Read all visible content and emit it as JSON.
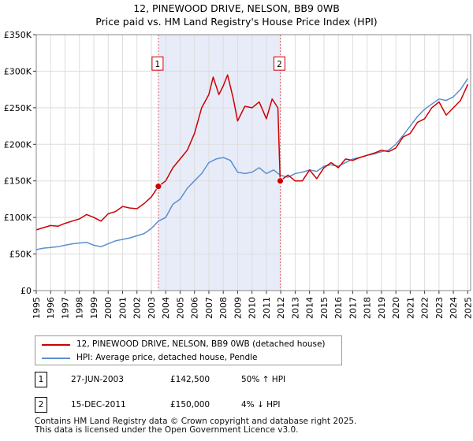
{
  "header": {
    "title_line1": "12, PINEWOOD DRIVE, NELSON, BB9 0WB",
    "title_line2": "Price paid vs. HM Land Registry's House Price Index (HPI)"
  },
  "chart_data": {
    "type": "line",
    "title": "12, PINEWOOD DRIVE, NELSON, BB9 0WB — Price paid vs. HM Land Registry's House Price Index (HPI)",
    "xlim": [
      1995,
      2025.2
    ],
    "ylim": [
      0,
      350000
    ],
    "x_ticks": [
      1995,
      1996,
      1997,
      1998,
      1999,
      2000,
      2001,
      2002,
      2003,
      2004,
      2005,
      2006,
      2007,
      2008,
      2009,
      2010,
      2011,
      2012,
      2013,
      2014,
      2015,
      2016,
      2017,
      2018,
      2019,
      2020,
      2021,
      2022,
      2023,
      2024,
      2025
    ],
    "y_ticks": [
      {
        "value": 0,
        "label": "£0"
      },
      {
        "value": 50000,
        "label": "£50K"
      },
      {
        "value": 100000,
        "label": "£100K"
      },
      {
        "value": 150000,
        "label": "£150K"
      },
      {
        "value": 200000,
        "label": "£200K"
      },
      {
        "value": 250000,
        "label": "£250K"
      },
      {
        "value": 300000,
        "label": "£300K"
      },
      {
        "value": 350000,
        "label": "£350K"
      }
    ],
    "grid": true,
    "shaded_region": {
      "from": 2003.49,
      "to": 2011.96
    },
    "series": [
      {
        "name": "12, PINEWOOD DRIVE, NELSON, BB9 0WB (detached house)",
        "color": "#cc0000",
        "points": [
          [
            1995.0,
            83000
          ],
          [
            1995.5,
            86000
          ],
          [
            1996.0,
            89000
          ],
          [
            1996.5,
            88000
          ],
          [
            1997.0,
            92000
          ],
          [
            1997.5,
            95000
          ],
          [
            1998.0,
            98000
          ],
          [
            1998.5,
            104000
          ],
          [
            1999.0,
            100000
          ],
          [
            1999.5,
            95000
          ],
          [
            2000.0,
            105000
          ],
          [
            2000.5,
            108000
          ],
          [
            2001.0,
            115000
          ],
          [
            2001.5,
            113000
          ],
          [
            2002.0,
            112000
          ],
          [
            2002.5,
            119000
          ],
          [
            2003.0,
            128000
          ],
          [
            2003.49,
            142500
          ],
          [
            2004.0,
            150000
          ],
          [
            2004.5,
            168000
          ],
          [
            2005.0,
            180000
          ],
          [
            2005.5,
            192000
          ],
          [
            2006.0,
            215000
          ],
          [
            2006.5,
            250000
          ],
          [
            2007.0,
            268000
          ],
          [
            2007.3,
            292000
          ],
          [
            2007.7,
            268000
          ],
          [
            2008.0,
            280000
          ],
          [
            2008.3,
            295000
          ],
          [
            2008.7,
            262000
          ],
          [
            2009.0,
            232000
          ],
          [
            2009.5,
            252000
          ],
          [
            2010.0,
            250000
          ],
          [
            2010.5,
            258000
          ],
          [
            2011.0,
            235000
          ],
          [
            2011.4,
            262000
          ],
          [
            2011.8,
            250000
          ],
          [
            2011.96,
            150000
          ],
          [
            2012.5,
            158000
          ],
          [
            2013.0,
            150000
          ],
          [
            2013.5,
            150000
          ],
          [
            2014.0,
            165000
          ],
          [
            2014.5,
            153000
          ],
          [
            2015.0,
            168000
          ],
          [
            2015.5,
            175000
          ],
          [
            2016.0,
            168000
          ],
          [
            2016.5,
            180000
          ],
          [
            2017.0,
            178000
          ],
          [
            2017.5,
            182000
          ],
          [
            2018.0,
            185000
          ],
          [
            2018.5,
            188000
          ],
          [
            2019.0,
            192000
          ],
          [
            2019.5,
            190000
          ],
          [
            2020.0,
            195000
          ],
          [
            2020.5,
            210000
          ],
          [
            2021.0,
            215000
          ],
          [
            2021.5,
            230000
          ],
          [
            2022.0,
            235000
          ],
          [
            2022.5,
            250000
          ],
          [
            2023.0,
            258000
          ],
          [
            2023.5,
            240000
          ],
          [
            2024.0,
            250000
          ],
          [
            2024.5,
            260000
          ],
          [
            2025.0,
            282000
          ]
        ]
      },
      {
        "name": "HPI: Average price, detached house, Pendle",
        "color": "#5b8fd1",
        "points": [
          [
            1995.0,
            56000
          ],
          [
            1995.5,
            58000
          ],
          [
            1996.0,
            59000
          ],
          [
            1996.5,
            60000
          ],
          [
            1997.0,
            62000
          ],
          [
            1997.5,
            64000
          ],
          [
            1998.0,
            65000
          ],
          [
            1998.5,
            66000
          ],
          [
            1999.0,
            62000
          ],
          [
            1999.5,
            60000
          ],
          [
            2000.0,
            64000
          ],
          [
            2000.5,
            68000
          ],
          [
            2001.0,
            70000
          ],
          [
            2001.5,
            72000
          ],
          [
            2002.0,
            75000
          ],
          [
            2002.5,
            78000
          ],
          [
            2003.0,
            85000
          ],
          [
            2003.49,
            95000
          ],
          [
            2004.0,
            100000
          ],
          [
            2004.5,
            118000
          ],
          [
            2005.0,
            125000
          ],
          [
            2005.5,
            140000
          ],
          [
            2006.0,
            150000
          ],
          [
            2006.5,
            160000
          ],
          [
            2007.0,
            175000
          ],
          [
            2007.5,
            180000
          ],
          [
            2008.0,
            182000
          ],
          [
            2008.5,
            178000
          ],
          [
            2009.0,
            162000
          ],
          [
            2009.5,
            160000
          ],
          [
            2010.0,
            162000
          ],
          [
            2010.5,
            168000
          ],
          [
            2011.0,
            160000
          ],
          [
            2011.5,
            165000
          ],
          [
            2011.96,
            158000
          ],
          [
            2012.5,
            155000
          ],
          [
            2013.0,
            160000
          ],
          [
            2013.5,
            162000
          ],
          [
            2014.0,
            165000
          ],
          [
            2014.5,
            163000
          ],
          [
            2015.0,
            170000
          ],
          [
            2015.5,
            172000
          ],
          [
            2016.0,
            170000
          ],
          [
            2016.5,
            175000
          ],
          [
            2017.0,
            180000
          ],
          [
            2017.5,
            182000
          ],
          [
            2018.0,
            185000
          ],
          [
            2018.5,
            187000
          ],
          [
            2019.0,
            190000
          ],
          [
            2019.5,
            192000
          ],
          [
            2020.0,
            200000
          ],
          [
            2020.5,
            212000
          ],
          [
            2021.0,
            225000
          ],
          [
            2021.5,
            238000
          ],
          [
            2022.0,
            248000
          ],
          [
            2022.5,
            255000
          ],
          [
            2023.0,
            262000
          ],
          [
            2023.5,
            260000
          ],
          [
            2024.0,
            265000
          ],
          [
            2024.5,
            275000
          ],
          [
            2025.0,
            290000
          ]
        ]
      }
    ],
    "sales": [
      {
        "id": "1",
        "x": 2003.49,
        "price": 142500
      },
      {
        "id": "2",
        "x": 2011.96,
        "price": 150000
      }
    ],
    "marker_box_value": 310000
  },
  "legend": {
    "items": [
      {
        "label": "12, PINEWOOD DRIVE, NELSON, BB9 0WB (detached house)",
        "color": "#cc0000"
      },
      {
        "label": "HPI: Average price, detached house, Pendle",
        "color": "#5b8fd1"
      }
    ]
  },
  "sales_table": [
    {
      "id": "1",
      "date": "27-JUN-2003",
      "price": "£142,500",
      "hpi": "50% ↑ HPI"
    },
    {
      "id": "2",
      "date": "15-DEC-2011",
      "price": "£150,000",
      "hpi": "4% ↓ HPI"
    }
  ],
  "footer": {
    "line1": "Contains HM Land Registry data © Crown copyright and database right 2025.",
    "line2": "This data is licensed under the Open Government Licence v3.0."
  }
}
